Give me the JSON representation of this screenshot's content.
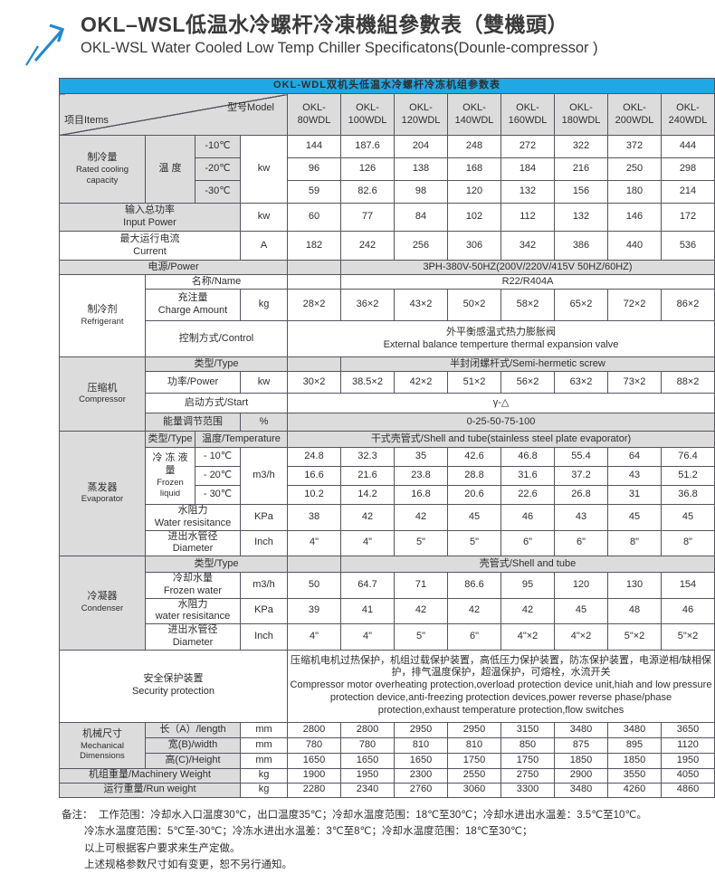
{
  "page": {
    "title_zh": "OKL–WSL低温水冷螺杆冷凍機組參數表（雙機頭）",
    "title_en": "OKL-WSL Water Cooled Low Temp Chiller Specificatons(Dounle-compressor )",
    "table_title": "OKL-WDL双机头低温水冷螺杆冷冻机组参数表"
  },
  "colors": {
    "bar_blue": "#1fa8e4",
    "arrow_blue": "#2289cc",
    "cell_gray": "#dcdcdc",
    "border": "#56535f"
  },
  "t": {
    "items_label": "项目Items",
    "model_label": "型号Model",
    "models": [
      "OKL-80WDL",
      "OKL-100WDL",
      "OKL-120WDL",
      "OKL-140WDL",
      "OKL-160WDL",
      "OKL-180WDL",
      "OKL-200WDL",
      "OKL-240WDL"
    ],
    "capacity": {
      "zh": "制冷量",
      "en": "Rated cooling capacity",
      "temp_label": "温 度",
      "unit": "kw",
      "t10": "-10℃",
      "t20": "-20℃",
      "t30": "-30℃",
      "v10": [
        144,
        187.6,
        204,
        248,
        272,
        322,
        372,
        444
      ],
      "v20": [
        96,
        126,
        138,
        168,
        184,
        216,
        250,
        298
      ],
      "v30": [
        59,
        82.6,
        98,
        120,
        132,
        156,
        180,
        214
      ]
    },
    "input_power": {
      "zh": "输入总功率",
      "en": "Input Power",
      "unit": "kw",
      "values": [
        60,
        77,
        84,
        102,
        112,
        132,
        146,
        172
      ]
    },
    "current": {
      "zh": "最大运行电流",
      "en": "Current",
      "unit": "A",
      "values": [
        182,
        242,
        256,
        306,
        342,
        386,
        440,
        536
      ]
    },
    "power_supply": {
      "label": "电源/Power",
      "value": "3PH-380V-50HZ(200V/220V/415V  50HZ/60HZ)"
    },
    "refrigerant": {
      "zh": "制冷剂",
      "en": "Refrigerant",
      "name_label": "名称/Name",
      "name_value": "R22/R404A",
      "charge_zh": "充注量",
      "charge_en": "Charge Amount",
      "charge_unit": "kg",
      "charge_values": [
        "28×2",
        "36×2",
        "43×2",
        "50×2",
        "58×2",
        "65×2",
        "72×2",
        "86×2"
      ],
      "control_label": "控制方式/Control",
      "control_zh": "外平衡感温式热力膨胀阀",
      "control_en": "External balance temperture thermal expansion valve"
    },
    "compressor": {
      "zh": "压缩机",
      "en": "Compressor",
      "type_label": "类型/Type",
      "type_value": "半封闭螺杆式/Semi-hermetic screw",
      "power_label": "功率/Power",
      "power_unit": "kw",
      "power_values": [
        "30×2",
        "38.5×2",
        "42×2",
        "51×2",
        "56×2",
        "63×2",
        "73×2",
        "88×2"
      ],
      "start_label": "启动方式/Start",
      "start_value": "γ-△",
      "energy_label": "能量调节范围",
      "energy_unit": "%",
      "energy_value": "0-25-50-75-100"
    },
    "evaporator": {
      "zh": "蒸发器",
      "en": "Evaporator",
      "type_label": "类型/Type",
      "temp_label": "温度/Temperature",
      "type_value": "干式壳管式/Shell and tube(stainless steel plate evaporator)",
      "frozen_zh": "冷 冻 液 量",
      "frozen_en": "Frozen liquid",
      "frozen_unit": "m3/h",
      "t10": "- 10℃",
      "t20": "- 20℃",
      "t30": "- 30℃",
      "v10": [
        24.8,
        32.3,
        35,
        42.6,
        46.8,
        55.4,
        64,
        76.4
      ],
      "v20": [
        16.6,
        21.6,
        23.8,
        28.8,
        31.6,
        37.2,
        43,
        51.2
      ],
      "v30": [
        10.2,
        14.2,
        16.8,
        20.6,
        22.6,
        26.8,
        31,
        36.8
      ],
      "res_zh": "水阻力",
      "res_en": "Water resisitance",
      "res_unit": "KPa",
      "res_values": [
        38,
        42,
        42,
        45,
        46,
        43,
        45,
        45
      ],
      "diam_zh": "进出水管径",
      "diam_en": "Diameter",
      "diam_unit": "Inch",
      "diam_values": [
        "4\"",
        "4\"",
        "5\"",
        "5\"",
        "6\"",
        "6\"",
        "8\"",
        "8\""
      ]
    },
    "condenser": {
      "zh": "冷凝器",
      "en": "Condenser",
      "type_label": "类型/Type",
      "type_value": "壳管式/Shell and tube",
      "water_zh": "冷却水量",
      "water_en": "Frozen water",
      "water_unit": "m3/h",
      "water_values": [
        50,
        64.7,
        71,
        86.6,
        95,
        120,
        130,
        154
      ],
      "res_zh": "水阻力",
      "res_en": "water resisitance",
      "res_unit": "KPa",
      "res_values": [
        39,
        41,
        42,
        42,
        42,
        45,
        48,
        46
      ],
      "diam_zh": "进出水管径",
      "diam_en": "Diameter",
      "diam_unit": "Inch",
      "diam_values": [
        "4\"",
        "4\"",
        "5\"",
        "6\"",
        "4\"×2",
        "4\"×2",
        "5\"×2",
        "5\"×2"
      ]
    },
    "security": {
      "zh": "安全保护装置",
      "en": "Security protection",
      "text_zh": "压缩机电机过热保护，机组过载保护装置，高低压力保护装置，防冻保护装置，电源逆相/缺相保护，排气温度保护，超温保护，可熔栓，水流开关",
      "text_en": "Compressor motor overheating protection,overload protection device unit,hiah and low pressure protection device,anti-freezing protection devices,power reverse phase/phase protection,exhaust temperature protection,flow switches"
    },
    "mechanical": {
      "zh": "机械尺寸",
      "en": "Mechanical Dimensions",
      "len_label": "长（A）/length",
      "len_unit": "mm",
      "len_values": [
        2800,
        2800,
        2950,
        2950,
        3150,
        3480,
        3480,
        3650
      ],
      "wid_label": "宽(B)/width",
      "wid_unit": "mm",
      "wid_values": [
        780,
        780,
        810,
        810,
        850,
        875,
        895,
        1120
      ],
      "hei_label": "高(C)/Height",
      "hei_unit": "mm",
      "hei_values": [
        1650,
        1650,
        1650,
        1750,
        1750,
        1850,
        1850,
        1950
      ]
    },
    "machinery_weight": {
      "label": "机组重量/Machinery Weight",
      "unit": "kg",
      "values": [
        1900,
        1950,
        2300,
        2550,
        2750,
        2900,
        3550,
        4050
      ]
    },
    "run_weight": {
      "label": "运行重量/Run weight",
      "unit": "kg",
      "values": [
        2280,
        2340,
        2760,
        3060,
        3300,
        3480,
        4260,
        4860
      ]
    }
  },
  "notes": {
    "prefix": "备注：",
    "line1": "工作范围：冷却水入口温度30℃，出口温度35℃；冷却水温度范围：18℃至30℃；冷却水进出水温差：3.5℃至10℃。",
    "line2": "冷冻水温度范围：5℃至-30℃；冷冻水进出水温差：3℃至8℃；冷却水温度范围：18℃至30℃；",
    "line3": "以上可根据客户要求来生产定做。",
    "line4": "上述规格参数尺寸如有变更，恕不另行通知。"
  }
}
